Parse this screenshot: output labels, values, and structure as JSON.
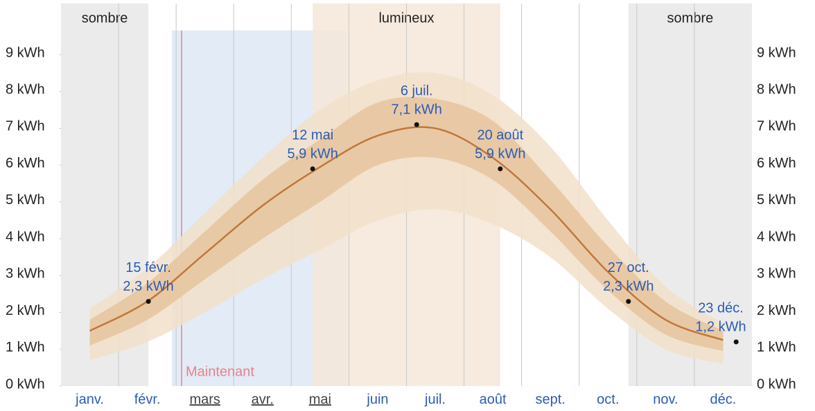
{
  "chart_data": {
    "type": "line",
    "categories": [
      "janv.",
      "févr.",
      "mars",
      "avr.",
      "mai",
      "juin",
      "juil.",
      "août",
      "sept.",
      "oct.",
      "nov.",
      "déc."
    ],
    "series": [
      {
        "color": "#c0773a",
        "values": [
          1.5,
          2.3,
          3.6,
          4.9,
          5.95,
          6.8,
          7.0,
          6.2,
          4.8,
          3.1,
          1.8,
          1.25
        ]
      }
    ],
    "bands": [
      {
        "color": "#f2e0ca",
        "low": [
          0.7,
          1.2,
          2.0,
          2.9,
          3.7,
          4.5,
          4.8,
          4.4,
          3.5,
          2.1,
          1.0,
          0.6
        ],
        "high": [
          2.1,
          3.2,
          4.7,
          6.2,
          7.5,
          8.3,
          8.5,
          7.9,
          6.5,
          4.5,
          2.7,
          1.7
        ]
      },
      {
        "color": "#e6c49e",
        "low": [
          1.1,
          1.8,
          2.9,
          4.0,
          5.0,
          6.0,
          6.2,
          5.6,
          4.2,
          2.6,
          1.4,
          0.95
        ],
        "high": [
          1.8,
          2.8,
          4.2,
          5.6,
          6.7,
          7.7,
          7.8,
          7.2,
          5.6,
          3.8,
          2.3,
          1.5
        ]
      }
    ],
    "annotations": [
      {
        "date": "15 févr.",
        "value": 2.3,
        "value_label": "2,3 kWh"
      },
      {
        "date": "12 mai",
        "value": 5.9,
        "value_label": "5,9 kWh"
      },
      {
        "date": "6 juil.",
        "value": 7.1,
        "value_label": "7,1 kWh"
      },
      {
        "date": "20 août",
        "value": 5.9,
        "value_label": "5,9 kWh"
      },
      {
        "date": "27 oct.",
        "value": 2.3,
        "value_label": "2,3 kWh"
      },
      {
        "date": "23 déc.",
        "value": 1.2,
        "value_label": "1,2 kWh"
      }
    ],
    "regions": [
      {
        "label": "sombre"
      },
      {
        "label": "lumineux"
      },
      {
        "label": "sombre"
      }
    ],
    "now_label": "Maintenant",
    "ylim": [
      0,
      9
    ],
    "yticks": [
      {
        "value": 0,
        "label": "0 kWh"
      },
      {
        "value": 1,
        "label": "1 kWh"
      },
      {
        "value": 2,
        "label": "2 kWh"
      },
      {
        "value": 3,
        "label": "3 kWh"
      },
      {
        "value": 4,
        "label": "4 kWh"
      },
      {
        "value": 5,
        "label": "5 kWh"
      },
      {
        "value": 6,
        "label": "6 kWh"
      },
      {
        "value": 7,
        "label": "7 kWh"
      },
      {
        "value": 8,
        "label": "8 kWh"
      },
      {
        "value": 9,
        "label": "9 kWh"
      }
    ]
  }
}
